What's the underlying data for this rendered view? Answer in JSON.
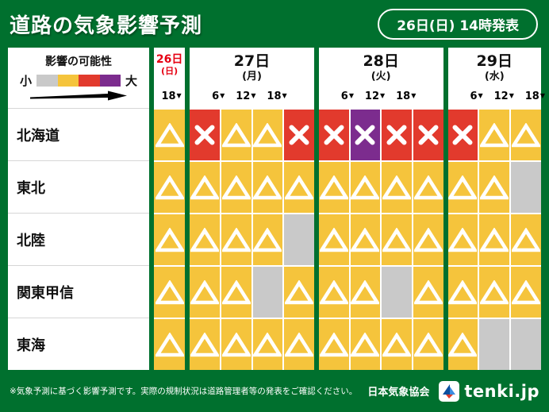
{
  "theme": {
    "green": "#00702e",
    "date_red": "#e60012"
  },
  "header": {
    "title": "道路の気象影響予測",
    "announcement": "26日(日) 14時発表"
  },
  "chart_data": {
    "type": "heatmap",
    "title": "道路の気象影響予測",
    "legend": {
      "title": "影響の可能性",
      "min_label": "小",
      "max_label": "大",
      "colors": [
        "#c9c9c9",
        "#f5c43c",
        "#e23a2d",
        "#7c2c8e"
      ]
    },
    "days": [
      {
        "label": "26日",
        "weekday": "(日)",
        "highlight": true,
        "slots": 1,
        "time_labels": [
          "18"
        ]
      },
      {
        "label": "27日",
        "weekday": "(月)",
        "highlight": false,
        "slots": 4,
        "time_labels": [
          "6",
          "12",
          "18"
        ]
      },
      {
        "label": "28日",
        "weekday": "(火)",
        "highlight": false,
        "slots": 4,
        "time_labels": [
          "6",
          "12",
          "18"
        ]
      },
      {
        "label": "29日",
        "weekday": "(水)",
        "highlight": false,
        "slots": 3,
        "time_labels": [
          "6",
          "12",
          "18"
        ]
      }
    ],
    "cell_states": {
      "t": {
        "color": "#f5c43c",
        "symbol": "triangle"
      },
      "r": {
        "color": "#e23a2d",
        "symbol": "x"
      },
      "p": {
        "color": "#7c2c8e",
        "symbol": "x"
      },
      "g": {
        "color": "#c9c9c9",
        "symbol": "none"
      }
    },
    "rows": [
      {
        "label": "北海道",
        "cells": [
          "t",
          "r",
          "t",
          "t",
          "r",
          "r",
          "p",
          "r",
          "r",
          "r",
          "t",
          "t"
        ]
      },
      {
        "label": "東北",
        "cells": [
          "t",
          "t",
          "t",
          "t",
          "t",
          "t",
          "t",
          "t",
          "t",
          "t",
          "t",
          "g"
        ]
      },
      {
        "label": "北陸",
        "cells": [
          "t",
          "t",
          "t",
          "t",
          "g",
          "t",
          "t",
          "t",
          "t",
          "t",
          "t",
          "t"
        ]
      },
      {
        "label": "関東甲信",
        "cells": [
          "t",
          "t",
          "t",
          "g",
          "t",
          "t",
          "t",
          "g",
          "t",
          "t",
          "t",
          "t"
        ]
      },
      {
        "label": "東海",
        "cells": [
          "t",
          "t",
          "t",
          "t",
          "t",
          "t",
          "t",
          "t",
          "t",
          "t",
          "g",
          "g"
        ]
      }
    ]
  },
  "footer": {
    "note": "※気象予測に基づく影響予測です。実際の規制状況は道路管理者等の発表をご確認ください。",
    "org": "日本気象協会",
    "logo_text": "tenki.jp"
  }
}
